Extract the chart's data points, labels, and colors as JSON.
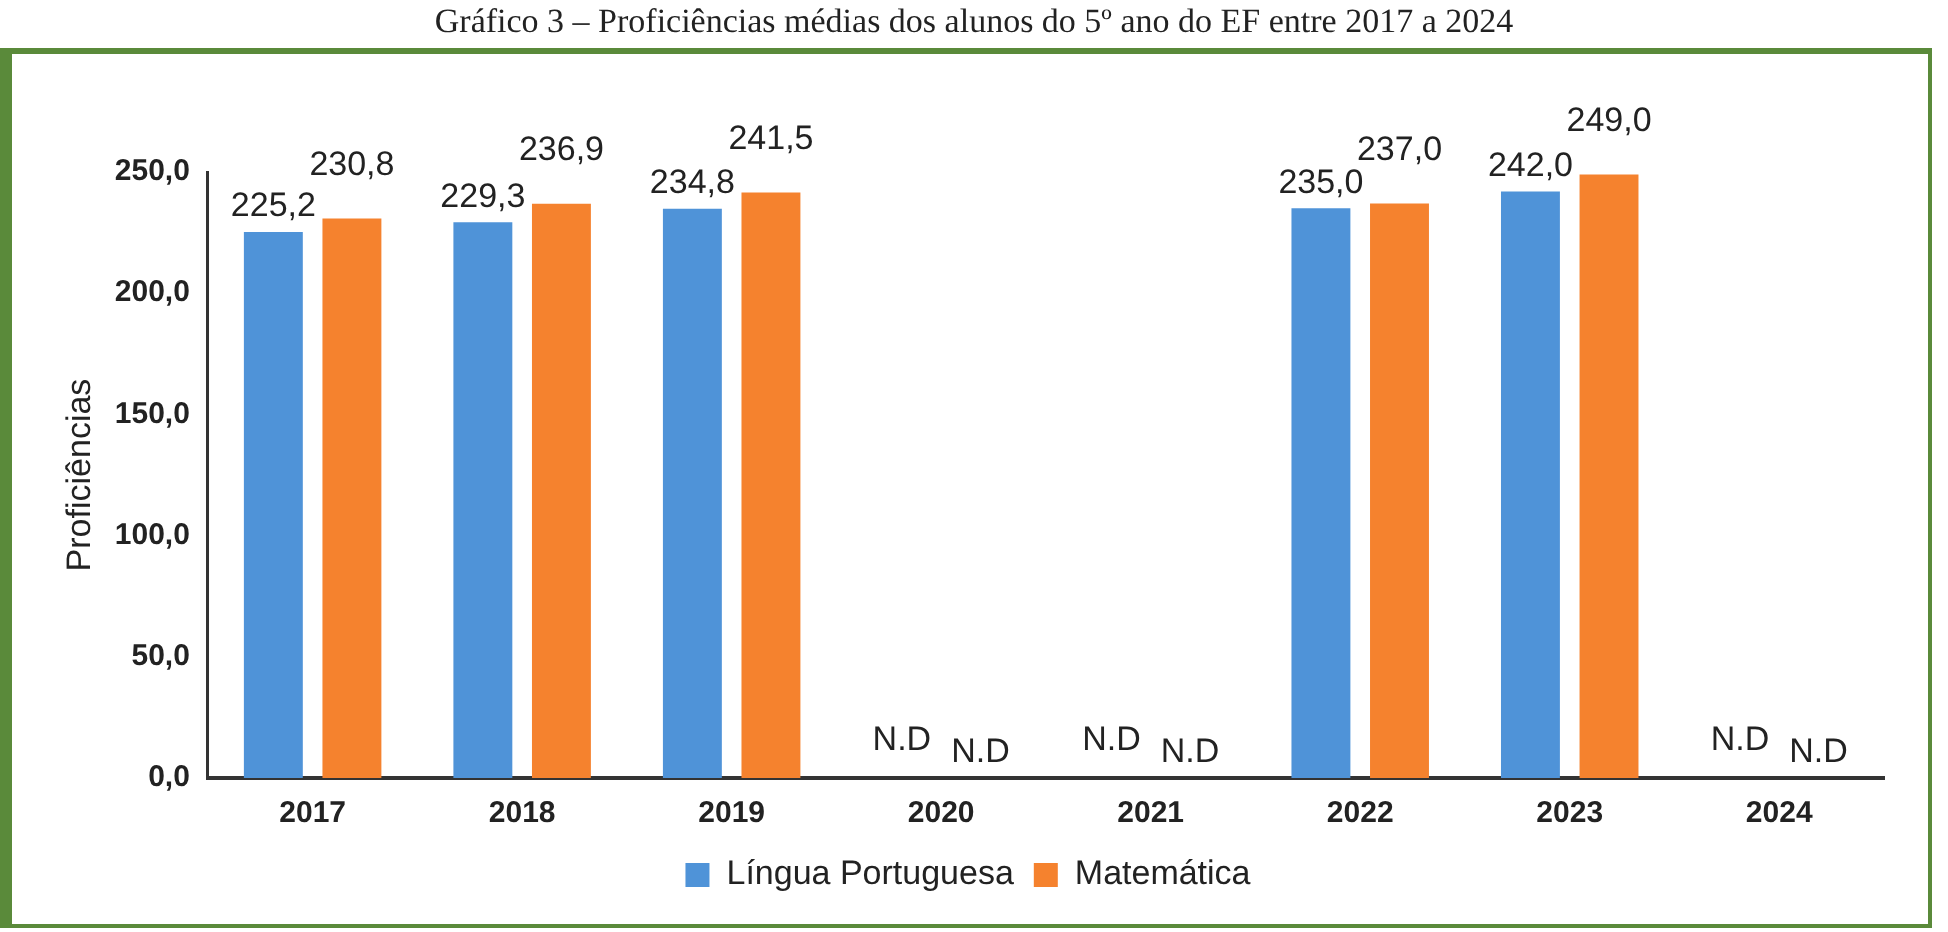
{
  "chart_data": {
    "type": "bar",
    "title": "Gráfico 3 – Proficiências médias dos alunos do 5º ano do EF entre 2017 a 2024",
    "ylabel": "Proficiências",
    "categories": [
      "2017",
      "2018",
      "2019",
      "2020",
      "2021",
      "2022",
      "2023",
      "2024"
    ],
    "series": [
      {
        "name": "Língua Portuguesa",
        "color": "#4f93d8",
        "values": [
          225.2,
          229.3,
          234.8,
          null,
          null,
          235.0,
          242.0,
          null
        ],
        "value_labels": [
          "225,2",
          "229,3",
          "234,8",
          "N.D",
          "N.D",
          "235,0",
          "242,0",
          "N.D"
        ]
      },
      {
        "name": "Matemática",
        "color": "#f5822e",
        "values": [
          230.8,
          236.9,
          241.5,
          null,
          null,
          237.0,
          249.0,
          null
        ],
        "value_labels": [
          "230,8",
          "236,9",
          "241,5",
          "N.D",
          "N.D",
          "237,0",
          "249,0",
          "N.D"
        ]
      }
    ],
    "ylim": [
      0,
      250
    ],
    "yticks": [
      {
        "value": 0,
        "label": "0,0"
      },
      {
        "value": 50,
        "label": "50,0"
      },
      {
        "value": 100,
        "label": "100,0"
      },
      {
        "value": 150,
        "label": "150,0"
      },
      {
        "value": 200,
        "label": "200,0"
      },
      {
        "value": 250,
        "label": "250,0"
      }
    ],
    "grid": false,
    "legend": "bottom"
  }
}
